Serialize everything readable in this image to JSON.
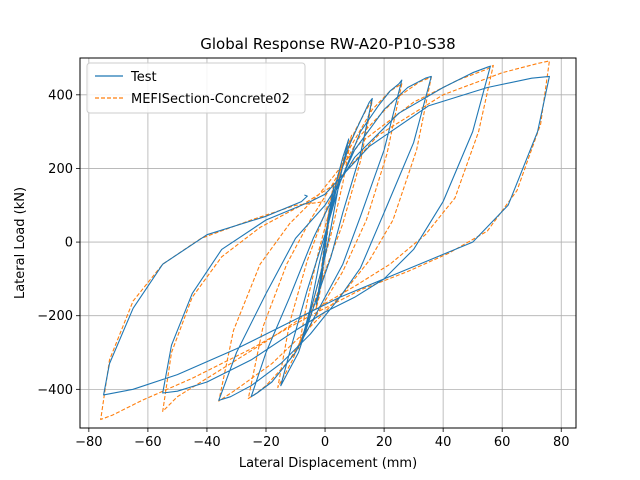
{
  "chart_data": {
    "type": "line",
    "title": "Global Response RW-A20-P10-S38",
    "xlabel": "Lateral Displacement (mm)",
    "ylabel": "Lateral Load (kN)",
    "xlim": [
      -83,
      85
    ],
    "ylim": [
      -505,
      500
    ],
    "xticks": [
      -80,
      -60,
      -40,
      -20,
      0,
      20,
      40,
      60,
      80
    ],
    "yticks": [
      -400,
      -200,
      0,
      200,
      400
    ],
    "xtick_labels": [
      "−80",
      "−60",
      "−40",
      "−20",
      "0",
      "20",
      "40",
      "60",
      "80"
    ],
    "ytick_labels": [
      "−400",
      "−200",
      "0",
      "200",
      "400"
    ],
    "grid": true,
    "legend_position": "top-left",
    "series": [
      {
        "name": "Test",
        "color": "#1f77b4",
        "style": "solid",
        "points": [
          [
            0,
            0
          ],
          [
            1,
            60
          ],
          [
            2,
            110
          ],
          [
            3,
            150
          ],
          [
            1.5,
            80
          ],
          [
            0,
            -20
          ],
          [
            -1,
            -90
          ],
          [
            -2,
            -140
          ],
          [
            -3,
            -170
          ],
          [
            -1.5,
            -100
          ],
          [
            0,
            0
          ],
          [
            2,
            90
          ],
          [
            4,
            170
          ],
          [
            6,
            230
          ],
          [
            8,
            280
          ],
          [
            5,
            170
          ],
          [
            2,
            40
          ],
          [
            0,
            -40
          ],
          [
            -3,
            -130
          ],
          [
            -6,
            -220
          ],
          [
            -8,
            -270
          ],
          [
            -5,
            -180
          ],
          [
            -2,
            -60
          ],
          [
            0,
            10
          ],
          [
            4,
            150
          ],
          [
            8,
            260
          ],
          [
            12,
            330
          ],
          [
            15,
            380
          ],
          [
            16,
            390
          ],
          [
            12,
            240
          ],
          [
            6,
            80
          ],
          [
            2,
            -40
          ],
          [
            -4,
            -180
          ],
          [
            -9,
            -300
          ],
          [
            -13,
            -360
          ],
          [
            -15,
            -390
          ],
          [
            -12,
            -300
          ],
          [
            -6,
            -130
          ],
          [
            0,
            20
          ],
          [
            5,
            160
          ],
          [
            12,
            300
          ],
          [
            18,
            370
          ],
          [
            22,
            410
          ],
          [
            25,
            430
          ],
          [
            26,
            440
          ],
          [
            20,
            250
          ],
          [
            12,
            70
          ],
          [
            6,
            -60
          ],
          [
            -2,
            -180
          ],
          [
            -10,
            -300
          ],
          [
            -18,
            -380
          ],
          [
            -23,
            -410
          ],
          [
            -25,
            -420
          ],
          [
            -20,
            -300
          ],
          [
            -12,
            -150
          ],
          [
            -4,
            10
          ],
          [
            2,
            110
          ],
          [
            10,
            250
          ],
          [
            20,
            360
          ],
          [
            28,
            420
          ],
          [
            34,
            445
          ],
          [
            36,
            450
          ],
          [
            30,
            270
          ],
          [
            20,
            80
          ],
          [
            12,
            -70
          ],
          [
            5,
            -150
          ],
          [
            -5,
            -250
          ],
          [
            -15,
            -330
          ],
          [
            -25,
            -390
          ],
          [
            -32,
            -420
          ],
          [
            -36,
            -430
          ],
          [
            -30,
            -300
          ],
          [
            -20,
            -140
          ],
          [
            -10,
            10
          ],
          [
            0,
            100
          ],
          [
            10,
            230
          ],
          [
            25,
            350
          ],
          [
            40,
            420
          ],
          [
            50,
            460
          ],
          [
            55,
            475
          ],
          [
            56,
            478
          ],
          [
            50,
            300
          ],
          [
            40,
            110
          ],
          [
            30,
            -20
          ],
          [
            20,
            -100
          ],
          [
            10,
            -150
          ],
          [
            0,
            -190
          ],
          [
            -10,
            -240
          ],
          [
            -25,
            -320
          ],
          [
            -40,
            -380
          ],
          [
            -50,
            -405
          ],
          [
            -55,
            -410
          ],
          [
            -52,
            -280
          ],
          [
            -45,
            -140
          ],
          [
            -35,
            -20
          ],
          [
            -20,
            60
          ],
          [
            -5,
            110
          ],
          [
            0,
            130
          ],
          [
            15,
            260
          ],
          [
            35,
            370
          ],
          [
            55,
            420
          ],
          [
            70,
            445
          ],
          [
            76,
            450
          ],
          [
            72,
            300
          ],
          [
            62,
            100
          ],
          [
            50,
            0
          ],
          [
            35,
            -50
          ],
          [
            20,
            -100
          ],
          [
            5,
            -150
          ],
          [
            -10,
            -210
          ],
          [
            -30,
            -290
          ],
          [
            -50,
            -360
          ],
          [
            -65,
            -400
          ],
          [
            -75,
            -415
          ],
          [
            -73,
            -330
          ],
          [
            -65,
            -180
          ],
          [
            -55,
            -60
          ],
          [
            -40,
            20
          ],
          [
            -20,
            70
          ],
          [
            -8,
            110
          ],
          [
            -6,
            125
          ],
          [
            -7,
            128
          ]
        ]
      },
      {
        "name": "MEFISection-Concrete02",
        "color": "#ff7f0e",
        "style": "dashed",
        "points": [
          [
            0,
            0
          ],
          [
            1,
            70
          ],
          [
            2,
            120
          ],
          [
            3,
            160
          ],
          [
            1.5,
            70
          ],
          [
            0,
            -30
          ],
          [
            -1,
            -100
          ],
          [
            -2,
            -150
          ],
          [
            -3,
            -180
          ],
          [
            -1.5,
            -90
          ],
          [
            0,
            10
          ],
          [
            3,
            130
          ],
          [
            6,
            220
          ],
          [
            9,
            290
          ],
          [
            6,
            160
          ],
          [
            2,
            20
          ],
          [
            -2,
            -100
          ],
          [
            -6,
            -220
          ],
          [
            -9,
            -290
          ],
          [
            -6,
            -160
          ],
          [
            -2,
            -20
          ],
          [
            0,
            40
          ],
          [
            5,
            190
          ],
          [
            10,
            300
          ],
          [
            14,
            360
          ],
          [
            16,
            385
          ],
          [
            12,
            220
          ],
          [
            6,
            50
          ],
          [
            0,
            -80
          ],
          [
            -6,
            -220
          ],
          [
            -11,
            -320
          ],
          [
            -15,
            -380
          ],
          [
            -16,
            -395
          ],
          [
            -12,
            -220
          ],
          [
            -6,
            -50
          ],
          [
            0,
            80
          ],
          [
            8,
            250
          ],
          [
            16,
            360
          ],
          [
            22,
            410
          ],
          [
            26,
            430
          ],
          [
            21,
            240
          ],
          [
            14,
            60
          ],
          [
            6,
            -80
          ],
          [
            -3,
            -200
          ],
          [
            -12,
            -320
          ],
          [
            -20,
            -390
          ],
          [
            -24,
            -415
          ],
          [
            -26,
            -425
          ],
          [
            -21,
            -230
          ],
          [
            -13,
            -60
          ],
          [
            -5,
            60
          ],
          [
            2,
            150
          ],
          [
            12,
            290
          ],
          [
            24,
            390
          ],
          [
            32,
            435
          ],
          [
            36,
            448
          ],
          [
            31,
            250
          ],
          [
            23,
            60
          ],
          [
            15,
            -50
          ],
          [
            6,
            -140
          ],
          [
            -5,
            -230
          ],
          [
            -18,
            -330
          ],
          [
            -30,
            -400
          ],
          [
            -36,
            -432
          ],
          [
            -31,
            -240
          ],
          [
            -22,
            -60
          ],
          [
            -12,
            50
          ],
          [
            -2,
            130
          ],
          [
            12,
            270
          ],
          [
            30,
            380
          ],
          [
            45,
            440
          ],
          [
            55,
            470
          ],
          [
            57,
            480
          ],
          [
            52,
            300
          ],
          [
            44,
            120
          ],
          [
            34,
            20
          ],
          [
            22,
            -60
          ],
          [
            10,
            -120
          ],
          [
            -5,
            -190
          ],
          [
            -20,
            -270
          ],
          [
            -38,
            -360
          ],
          [
            -50,
            -420
          ],
          [
            -55,
            -460
          ],
          [
            -52,
            -300
          ],
          [
            -45,
            -150
          ],
          [
            -35,
            -40
          ],
          [
            -22,
            40
          ],
          [
            -8,
            100
          ],
          [
            2,
            150
          ],
          [
            18,
            290
          ],
          [
            40,
            400
          ],
          [
            60,
            460
          ],
          [
            72,
            485
          ],
          [
            76,
            492
          ],
          [
            73,
            320
          ],
          [
            65,
            140
          ],
          [
            55,
            30
          ],
          [
            42,
            -30
          ],
          [
            28,
            -80
          ],
          [
            12,
            -130
          ],
          [
            -5,
            -200
          ],
          [
            -25,
            -290
          ],
          [
            -45,
            -370
          ],
          [
            -62,
            -430
          ],
          [
            -72,
            -470
          ],
          [
            -76,
            -482
          ],
          [
            -73,
            -320
          ],
          [
            -65,
            -160
          ],
          [
            -55,
            -60
          ],
          [
            -42,
            10
          ],
          [
            -25,
            60
          ],
          [
            -10,
            100
          ],
          [
            0,
            110
          ]
        ]
      }
    ]
  }
}
